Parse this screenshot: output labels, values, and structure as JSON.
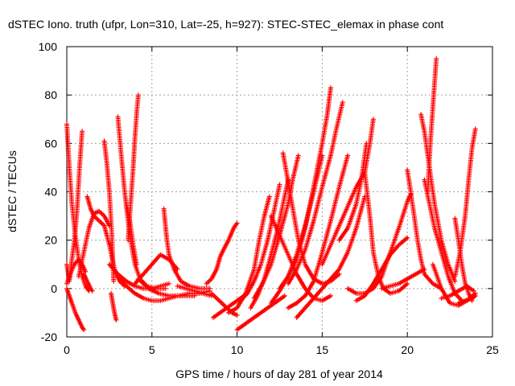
{
  "chart_data": {
    "type": "scatter",
    "title": "dSTEC Iono. truth (ufpr, Lon=310, Lat=-25, h=927): STEC-STEC_elemax in phase cont",
    "xlabel": "GPS time / hours of day 281 of year 2014",
    "ylabel": "dSTEC  / TECUs",
    "xlim": [
      0,
      25
    ],
    "ylim": [
      -20,
      100
    ],
    "xticks": [
      "0",
      "5",
      "10",
      "15",
      "20",
      "25"
    ],
    "yticks": [
      "-20",
      "0",
      "20",
      "40",
      "60",
      "80",
      "100"
    ],
    "grid": true,
    "marker": "plus",
    "color": "#ff0000",
    "series": [
      {
        "x": [
          0.0,
          0.15,
          0.3,
          0.5,
          0.7,
          0.9,
          1.1,
          1.3
        ],
        "y": [
          68,
          50,
          35,
          22,
          12,
          5,
          1,
          -1
        ]
      },
      {
        "x": [
          0.0,
          0.15,
          0.3,
          0.5,
          0.7,
          0.9,
          1.0
        ],
        "y": [
          0,
          -3,
          -6,
          -10,
          -13,
          -16,
          -17
        ]
      },
      {
        "x": [
          0.0,
          0.15,
          0.3,
          0.45,
          0.6,
          0.75,
          0.9
        ],
        "y": [
          10,
          3,
          12,
          20,
          32,
          50,
          65
        ]
      },
      {
        "x": [
          0.0,
          0.2,
          0.45,
          0.7,
          0.9,
          1.1
        ],
        "y": [
          2,
          6,
          10,
          12,
          10,
          7
        ]
      },
      {
        "x": [
          0.7,
          1.0,
          1.3,
          1.6,
          1.9,
          2.2,
          2.5
        ],
        "y": [
          5,
          15,
          25,
          31,
          32,
          30,
          26
        ]
      },
      {
        "x": [
          1.2,
          1.4,
          1.6,
          1.9,
          2.2,
          2.5,
          2.8,
          3.1,
          3.4
        ],
        "y": [
          38,
          33,
          30,
          28,
          26,
          18,
          8,
          3,
          1
        ]
      },
      {
        "x": [
          1.0,
          1.2,
          1.4,
          1.5
        ],
        "y": [
          6,
          3,
          0,
          -1
        ]
      },
      {
        "x": [
          2.2,
          2.35,
          2.5,
          2.65,
          2.75
        ],
        "y": [
          61,
          52,
          40,
          22,
          3
        ]
      },
      {
        "x": [
          2.6,
          2.7,
          2.8,
          2.9
        ],
        "y": [
          -2,
          -6,
          -10,
          -13
        ]
      },
      {
        "x": [
          3.0,
          3.2,
          3.4,
          3.6,
          3.8,
          4.0,
          4.3,
          4.7,
          5.2,
          5.8
        ],
        "y": [
          71,
          55,
          40,
          28,
          18,
          10,
          4,
          1,
          0,
          0
        ]
      },
      {
        "x": [
          3.5,
          3.7,
          3.9,
          4.1
        ],
        "y": [
          35,
          28,
          18,
          10
        ]
      },
      {
        "x": [
          3.6,
          3.75,
          3.9,
          4.0,
          4.1,
          4.2
        ],
        "y": [
          20,
          35,
          50,
          62,
          72,
          80
        ]
      },
      {
        "x": [
          2.5,
          3.0,
          3.5,
          4.0,
          4.5,
          5.0,
          5.5,
          6.0
        ],
        "y": [
          10,
          6,
          3,
          1,
          0,
          0,
          1,
          2
        ]
      },
      {
        "x": [
          3.0,
          3.5,
          4.0,
          4.5,
          5.0,
          5.5,
          6.0,
          6.5,
          7.0,
          7.5
        ],
        "y": [
          5,
          1,
          -2,
          -4,
          -5,
          -5,
          -4,
          -3,
          -3,
          -3
        ]
      },
      {
        "x": [
          4.0,
          4.5,
          5.0,
          5.5,
          6.0,
          6.5
        ],
        "y": [
          2,
          6,
          10,
          14,
          12,
          8
        ]
      },
      {
        "x": [
          4.2,
          4.8,
          5.4,
          6.0,
          6.6,
          7.2,
          7.8,
          8.4
        ],
        "y": [
          4,
          0,
          -2,
          -3,
          -3,
          -2,
          -2,
          -1
        ]
      },
      {
        "x": [
          5.7,
          5.85,
          6.0,
          6.3,
          6.7,
          7.2,
          7.8,
          8.4
        ],
        "y": [
          33,
          22,
          14,
          8,
          3,
          1,
          0,
          0
        ]
      },
      {
        "x": [
          6.5,
          7.0,
          7.5,
          8.0,
          8.5
        ],
        "y": [
          1,
          0,
          -1,
          -2,
          -3
        ]
      },
      {
        "x": [
          8.2,
          8.5,
          8.8,
          9.0,
          9.2,
          9.5,
          9.8,
          10.0
        ],
        "y": [
          2,
          4,
          8,
          13,
          16,
          20,
          25,
          27
        ]
      },
      {
        "x": [
          8.5,
          8.8,
          9.1,
          9.4,
          9.7,
          10.0
        ],
        "y": [
          -2,
          -4,
          -6,
          -8,
          -10,
          -11
        ]
      },
      {
        "x": [
          8.6,
          9.0,
          9.4,
          9.8,
          10.2,
          10.6
        ],
        "y": [
          -12,
          -10,
          -8,
          -6,
          -4,
          -2
        ]
      },
      {
        "x": [
          10.0,
          10.4,
          10.8,
          11.2,
          11.6,
          12.0,
          12.4,
          12.8
        ],
        "y": [
          -17,
          -15,
          -13,
          -11,
          -9,
          -7,
          -5,
          -3
        ]
      },
      {
        "x": [
          9.5,
          10.0,
          10.5,
          11.0,
          11.3,
          11.6,
          11.9
        ],
        "y": [
          -10,
          -8,
          -2,
          8,
          20,
          30,
          38
        ]
      },
      {
        "x": [
          10.2,
          10.6,
          11.0,
          11.4,
          11.8,
          12.2,
          12.5
        ],
        "y": [
          -5,
          -2,
          3,
          10,
          20,
          33,
          43
        ]
      },
      {
        "x": [
          10.8,
          11.2,
          11.6,
          12.0,
          12.4,
          12.7,
          13.0
        ],
        "y": [
          -8,
          -3,
          4,
          14,
          25,
          35,
          45
        ]
      },
      {
        "x": [
          11.0,
          11.5,
          12.0,
          12.5,
          13.0,
          13.3,
          13.6
        ],
        "y": [
          -4,
          2,
          10,
          22,
          35,
          46,
          55
        ]
      },
      {
        "x": [
          12.0,
          12.5,
          13.0,
          13.5,
          14.0,
          14.5,
          15.0
        ],
        "y": [
          -6,
          -1,
          5,
          14,
          26,
          40,
          55
        ]
      },
      {
        "x": [
          12.5,
          13.0,
          13.5,
          14.0,
          14.5,
          15.0,
          15.3,
          15.5
        ],
        "y": [
          0,
          5,
          12,
          25,
          42,
          60,
          72,
          83
        ]
      },
      {
        "x": [
          13.0,
          13.5,
          14.0,
          14.5,
          15.0,
          15.5,
          15.8,
          16.2
        ],
        "y": [
          2,
          8,
          16,
          28,
          42,
          55,
          65,
          77
        ]
      },
      {
        "x": [
          13.0,
          13.5,
          14.0,
          14.5,
          15.0,
          15.5,
          16.0,
          16.5
        ],
        "y": [
          -8,
          -6,
          -3,
          3,
          15,
          28,
          42,
          55
        ]
      },
      {
        "x": [
          12.0,
          12.5,
          13.0,
          13.5,
          14.0,
          14.5,
          15.0,
          15.5
        ],
        "y": [
          30,
          22,
          14,
          6,
          0,
          -4,
          -5,
          -3
        ]
      },
      {
        "x": [
          12.7,
          13.0,
          13.3,
          13.6,
          14.0,
          14.5,
          15.0,
          15.5,
          16.0
        ],
        "y": [
          56,
          44,
          32,
          20,
          10,
          4,
          2,
          3,
          6
        ]
      },
      {
        "x": [
          13.5,
          14.0,
          14.5,
          15.0,
          15.5,
          16.0,
          16.5,
          17.0,
          17.5
        ],
        "y": [
          -12,
          -8,
          -4,
          0,
          4,
          8,
          15,
          25,
          38
        ]
      },
      {
        "x": [
          15.0,
          15.5,
          16.0,
          16.5,
          17.0,
          17.5,
          17.8,
          18.0
        ],
        "y": [
          10,
          18,
          26,
          34,
          42,
          48,
          60,
          70
        ]
      },
      {
        "x": [
          16.0,
          16.5,
          17.0,
          17.3,
          17.6
        ],
        "y": [
          20,
          25,
          35,
          45,
          60
        ]
      },
      {
        "x": [
          17.5,
          17.8,
          18.0,
          18.3,
          18.6,
          19.0,
          19.5,
          20.0
        ],
        "y": [
          48,
          30,
          15,
          5,
          0,
          -2,
          -1,
          2
        ]
      },
      {
        "x": [
          16.5,
          17.0,
          17.5,
          18.0,
          18.5,
          19.0,
          19.5,
          20.0,
          20.2
        ],
        "y": [
          0,
          -2,
          -2,
          0,
          5,
          15,
          25,
          36,
          39
        ]
      },
      {
        "x": [
          17.0,
          17.5,
          18.0,
          18.5,
          19.0,
          19.5,
          20.0
        ],
        "y": [
          -5,
          -3,
          2,
          8,
          14,
          18,
          21
        ]
      },
      {
        "x": [
          18.5,
          19.0,
          19.5,
          20.0,
          20.5,
          21.0
        ],
        "y": [
          0,
          1,
          2,
          4,
          6,
          8
        ]
      },
      {
        "x": [
          20.0,
          20.2,
          20.4,
          20.6,
          20.8,
          21.0,
          21.5,
          22.0
        ],
        "y": [
          49,
          40,
          30,
          20,
          12,
          6,
          2,
          0
        ]
      },
      {
        "x": [
          20.8,
          21.0,
          21.2,
          21.4,
          21.6,
          22.0,
          22.4,
          22.8
        ],
        "y": [
          72,
          65,
          55,
          45,
          35,
          20,
          10,
          3
        ]
      },
      {
        "x": [
          21.2,
          21.35,
          21.5,
          21.6,
          21.7
        ],
        "y": [
          40,
          60,
          75,
          85,
          95
        ]
      },
      {
        "x": [
          21.0,
          21.3,
          21.6,
          22.0,
          22.4,
          22.8,
          23.2
        ],
        "y": [
          45,
          35,
          25,
          15,
          5,
          -2,
          -5
        ]
      },
      {
        "x": [
          21.5,
          22.0,
          22.5,
          23.0,
          23.5,
          24.0
        ],
        "y": [
          10,
          0,
          -6,
          -7,
          -5,
          -2
        ]
      },
      {
        "x": [
          22.0,
          22.5,
          23.0,
          23.5,
          23.9
        ],
        "y": [
          -4,
          -3,
          -1,
          1,
          -1
        ]
      },
      {
        "x": [
          22.8,
          23.0,
          23.2,
          23.4,
          23.6,
          23.8
        ],
        "y": [
          29,
          20,
          10,
          2,
          -2,
          -5
        ]
      },
      {
        "x": [
          22.8,
          23.1,
          23.4,
          23.6,
          23.8,
          24.0
        ],
        "y": [
          5,
          15,
          30,
          45,
          58,
          66
        ]
      },
      {
        "x": [
          23.0,
          23.4,
          23.8,
          24.0
        ],
        "y": [
          -6,
          -5,
          -4,
          -3
        ]
      }
    ]
  }
}
